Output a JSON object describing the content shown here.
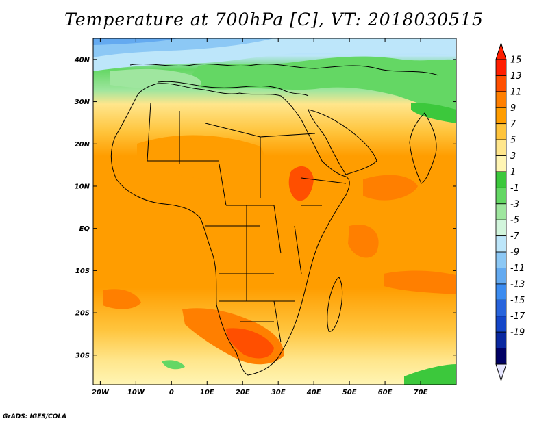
{
  "title": "Temperature at 700hPa [C], VT: 2018030515",
  "credit": "GrADS: IGES/COLA",
  "map": {
    "lon_range": [
      -22,
      80
    ],
    "lat_range": [
      -37,
      45
    ],
    "lat_ticks": [
      {
        "value": 40,
        "label": "40N"
      },
      {
        "value": 30,
        "label": "30N"
      },
      {
        "value": 20,
        "label": "20N"
      },
      {
        "value": 10,
        "label": "10N"
      },
      {
        "value": 0,
        "label": "EQ"
      },
      {
        "value": -10,
        "label": "10S"
      },
      {
        "value": -20,
        "label": "20S"
      },
      {
        "value": -30,
        "label": "30S"
      }
    ],
    "lon_ticks": [
      {
        "value": -20,
        "label": "20W"
      },
      {
        "value": -10,
        "label": "10W"
      },
      {
        "value": 0,
        "label": "0"
      },
      {
        "value": 10,
        "label": "10E"
      },
      {
        "value": 20,
        "label": "20E"
      },
      {
        "value": 30,
        "label": "30E"
      },
      {
        "value": 40,
        "label": "40E"
      },
      {
        "value": 50,
        "label": "50E"
      },
      {
        "value": 60,
        "label": "60E"
      },
      {
        "value": 70,
        "label": "70E"
      }
    ]
  },
  "colorbar": {
    "labels": [
      "15",
      "13",
      "11",
      "9",
      "7",
      "5",
      "3",
      "1",
      "-1",
      "-3",
      "-5",
      "-7",
      "-9",
      "-11",
      "-13",
      "-15",
      "-17",
      "-19"
    ],
    "colors": [
      "#ff1e00",
      "#ff4f00",
      "#ff7f00",
      "#ff9d00",
      "#ffc43c",
      "#ffe68c",
      "#fff5b4",
      "#3cc83c",
      "#64d764",
      "#9fe69f",
      "#d2f5dc",
      "#bde6fa",
      "#8cc8f5",
      "#64aaf0",
      "#3c8cf0",
      "#2864dc",
      "#1446c8",
      "#0a28a0",
      "#000064"
    ],
    "tip_top_color": "#ff1e00",
    "tip_bottom_color": "#e6e6ff"
  }
}
